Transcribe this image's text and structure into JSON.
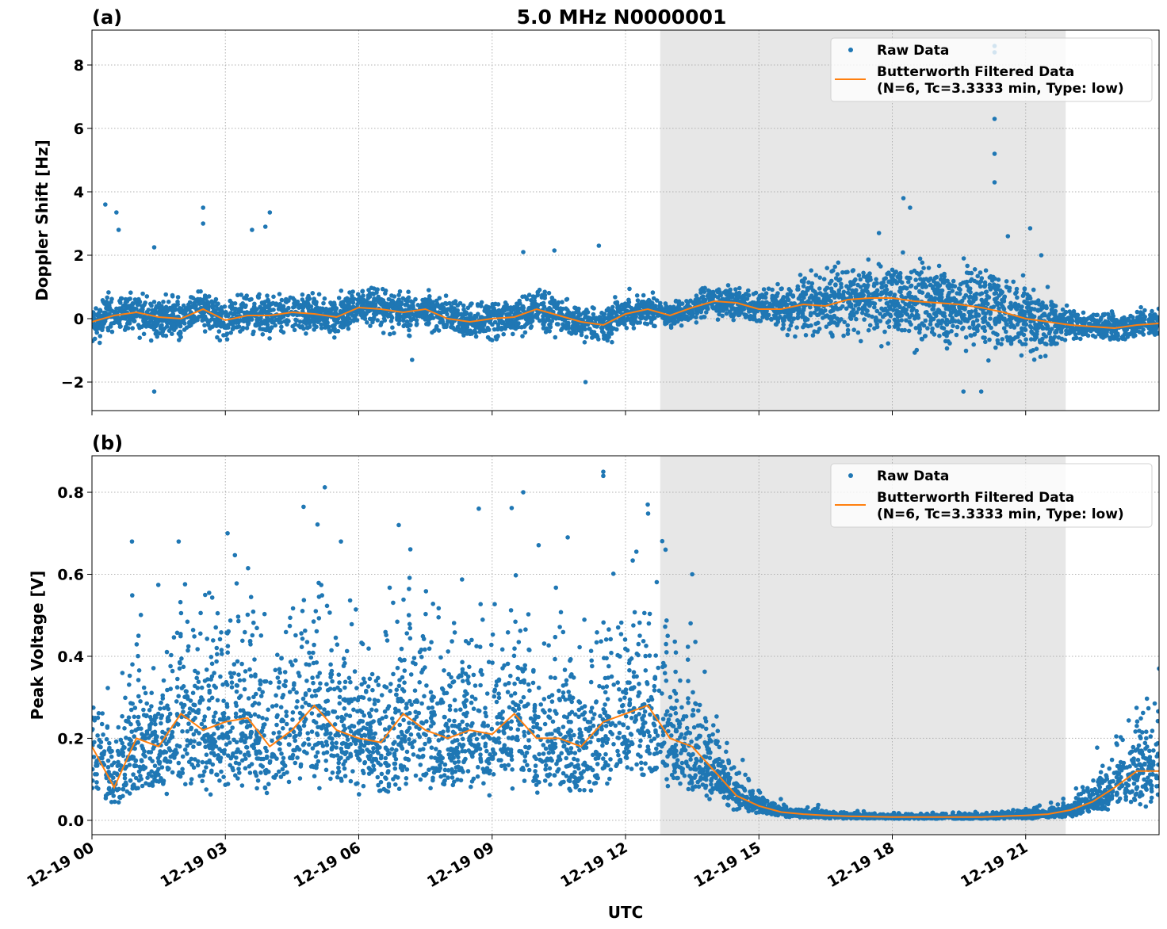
{
  "figure_title": "5.0 MHz N0000001",
  "x_axis_label": "UTC",
  "chart_data": [
    {
      "type": "scatter",
      "panel_label": "(a)",
      "title": "5.0 MHz N0000001",
      "xlabel": "UTC",
      "ylabel": "Doppler Shift [Hz]",
      "xlim_hours": [
        0,
        24
      ],
      "ylim": [
        -2.9,
        9.1
      ],
      "yticks": [
        -2,
        0,
        2,
        4,
        6,
        8
      ],
      "ytick_labels": [
        "−2",
        "0",
        "2",
        "4",
        "6",
        "8"
      ],
      "xticks_hours": [
        0,
        3,
        6,
        9,
        12,
        15,
        18,
        21
      ],
      "xtick_labels": [
        "12-19 00",
        "12-19 03",
        "12-19 06",
        "12-19 09",
        "12-19 12",
        "12-19 15",
        "12-19 18",
        "12-19 21"
      ],
      "grid": true,
      "shaded_region_hours": [
        12.78,
        21.9
      ],
      "legend": {
        "placement": "top-right",
        "entries": [
          "Raw Data",
          "Butterworth Filtered Data",
          "(N=6, Tc=3.3333 min, Type: low)"
        ]
      },
      "series": [
        {
          "name": "Butterworth Filtered Data",
          "kind": "line",
          "color": "#ff7f0e",
          "x_hours": [
            0,
            0.5,
            1,
            1.5,
            2,
            2.5,
            3,
            3.5,
            4,
            4.5,
            5,
            5.5,
            6,
            6.5,
            7,
            7.5,
            8,
            8.5,
            9,
            9.5,
            10,
            10.5,
            11,
            11.5,
            12,
            12.5,
            13,
            13.5,
            14,
            14.5,
            15,
            15.5,
            16,
            16.5,
            17,
            17.5,
            18,
            18.5,
            19,
            19.5,
            20,
            20.5,
            21,
            21.5,
            22,
            22.5,
            23,
            23.5,
            24
          ],
          "y": [
            -0.1,
            0.1,
            0.2,
            0.05,
            0.0,
            0.3,
            -0.05,
            0.1,
            0.1,
            0.2,
            0.15,
            0.05,
            0.35,
            0.3,
            0.2,
            0.3,
            0.0,
            -0.1,
            0.0,
            0.05,
            0.3,
            0.1,
            -0.1,
            -0.2,
            0.15,
            0.3,
            0.1,
            0.35,
            0.55,
            0.5,
            0.3,
            0.3,
            0.45,
            0.4,
            0.6,
            0.65,
            0.65,
            0.55,
            0.5,
            0.45,
            0.35,
            0.2,
            0.0,
            -0.1,
            -0.2,
            -0.25,
            -0.3,
            -0.2,
            -0.15
          ]
        },
        {
          "name": "Raw Data",
          "kind": "scatter",
          "color": "#1f77b4",
          "spread_sd_hours": [
            0,
            3,
            6,
            9,
            12,
            13,
            15,
            16,
            18,
            20,
            21.5,
            22,
            24
          ],
          "spread_sd": [
            0.28,
            0.28,
            0.28,
            0.28,
            0.25,
            0.18,
            0.25,
            0.45,
            0.6,
            0.6,
            0.4,
            0.2,
            0.2
          ],
          "outliers": [
            [
              0.3,
              3.6
            ],
            [
              0.55,
              3.35
            ],
            [
              0.6,
              2.8
            ],
            [
              1.4,
              -2.3
            ],
            [
              1.4,
              2.25
            ],
            [
              2.5,
              3.5
            ],
            [
              2.5,
              3.0
            ],
            [
              3.6,
              2.8
            ],
            [
              4.0,
              3.35
            ],
            [
              3.9,
              2.9
            ],
            [
              7.2,
              -1.3
            ],
            [
              9.7,
              2.1
            ],
            [
              10.4,
              2.15
            ],
            [
              11.1,
              -2.0
            ],
            [
              11.4,
              2.3
            ],
            [
              17.7,
              2.7
            ],
            [
              18.25,
              3.8
            ],
            [
              18.4,
              3.5
            ],
            [
              19.6,
              -2.3
            ],
            [
              20.3,
              6.3
            ],
            [
              20.3,
              8.6
            ],
            [
              20.3,
              8.4
            ],
            [
              20.3,
              5.2
            ],
            [
              20.3,
              4.3
            ],
            [
              20.6,
              2.6
            ],
            [
              21.1,
              2.85
            ],
            [
              21.35,
              2.0
            ],
            [
              20.0,
              -2.3
            ]
          ]
        }
      ]
    },
    {
      "type": "scatter",
      "panel_label": "(b)",
      "xlabel": "UTC",
      "ylabel": "Peak Voltage [V]",
      "xlim_hours": [
        0,
        24
      ],
      "ylim": [
        -0.035,
        0.889
      ],
      "yticks": [
        0.0,
        0.2,
        0.4,
        0.6,
        0.8
      ],
      "ytick_labels": [
        "0.0",
        "0.2",
        "0.4",
        "0.6",
        "0.8"
      ],
      "xticks_hours": [
        0,
        3,
        6,
        9,
        12,
        15,
        18,
        21
      ],
      "xtick_labels": [
        "12-19 00",
        "12-19 03",
        "12-19 06",
        "12-19 09",
        "12-19 12",
        "12-19 15",
        "12-19 18",
        "12-19 21"
      ],
      "grid": true,
      "shaded_region_hours": [
        12.78,
        21.9
      ],
      "legend": {
        "placement": "top-right",
        "entries": [
          "Raw Data",
          "Butterworth Filtered Data",
          "(N=6, Tc=3.3333 min, Type: low)"
        ]
      },
      "series": [
        {
          "name": "Butterworth Filtered Data",
          "kind": "line",
          "color": "#ff7f0e",
          "x_hours": [
            0,
            0.5,
            1,
            1.5,
            2,
            2.5,
            3,
            3.5,
            4,
            4.5,
            5,
            5.5,
            6,
            6.5,
            7,
            7.5,
            8,
            8.5,
            9,
            9.5,
            10,
            10.5,
            11,
            11.5,
            12,
            12.5,
            13,
            13.5,
            14,
            14.5,
            15,
            15.5,
            16,
            16.5,
            17,
            17.5,
            18,
            18.5,
            19,
            19.5,
            20,
            20.5,
            21,
            21.5,
            22,
            22.5,
            23,
            23.5,
            24
          ],
          "y": [
            0.18,
            0.08,
            0.2,
            0.18,
            0.26,
            0.22,
            0.24,
            0.25,
            0.18,
            0.22,
            0.28,
            0.22,
            0.2,
            0.19,
            0.26,
            0.22,
            0.2,
            0.22,
            0.21,
            0.26,
            0.2,
            0.2,
            0.18,
            0.24,
            0.26,
            0.28,
            0.2,
            0.18,
            0.12,
            0.06,
            0.035,
            0.02,
            0.015,
            0.012,
            0.01,
            0.009,
            0.008,
            0.008,
            0.008,
            0.008,
            0.008,
            0.01,
            0.012,
            0.015,
            0.025,
            0.045,
            0.08,
            0.12,
            0.12
          ]
        },
        {
          "name": "Raw Data",
          "kind": "scatter",
          "color": "#1f77b4",
          "spread_sd_hours": [
            0,
            13,
            14,
            15,
            22,
            24
          ],
          "spread_sd": [
            0.45,
            0.45,
            0.4,
            0.35,
            0.4,
            0.45
          ],
          "outliers": [
            [
              11.5,
              0.85
            ],
            [
              11.5,
              0.84
            ],
            [
              9.7,
              0.8
            ],
            [
              12.5,
              0.77
            ],
            [
              8.7,
              0.76
            ],
            [
              6.9,
              0.72
            ],
            [
              3.05,
              0.7
            ],
            [
              12.9,
              0.66
            ],
            [
              13.5,
              0.6
            ],
            [
              1.95,
              0.68
            ],
            [
              0.9,
              0.68
            ],
            [
              5.6,
              0.68
            ],
            [
              10.7,
              0.69
            ],
            [
              24,
              0.37
            ]
          ]
        }
      ]
    }
  ]
}
